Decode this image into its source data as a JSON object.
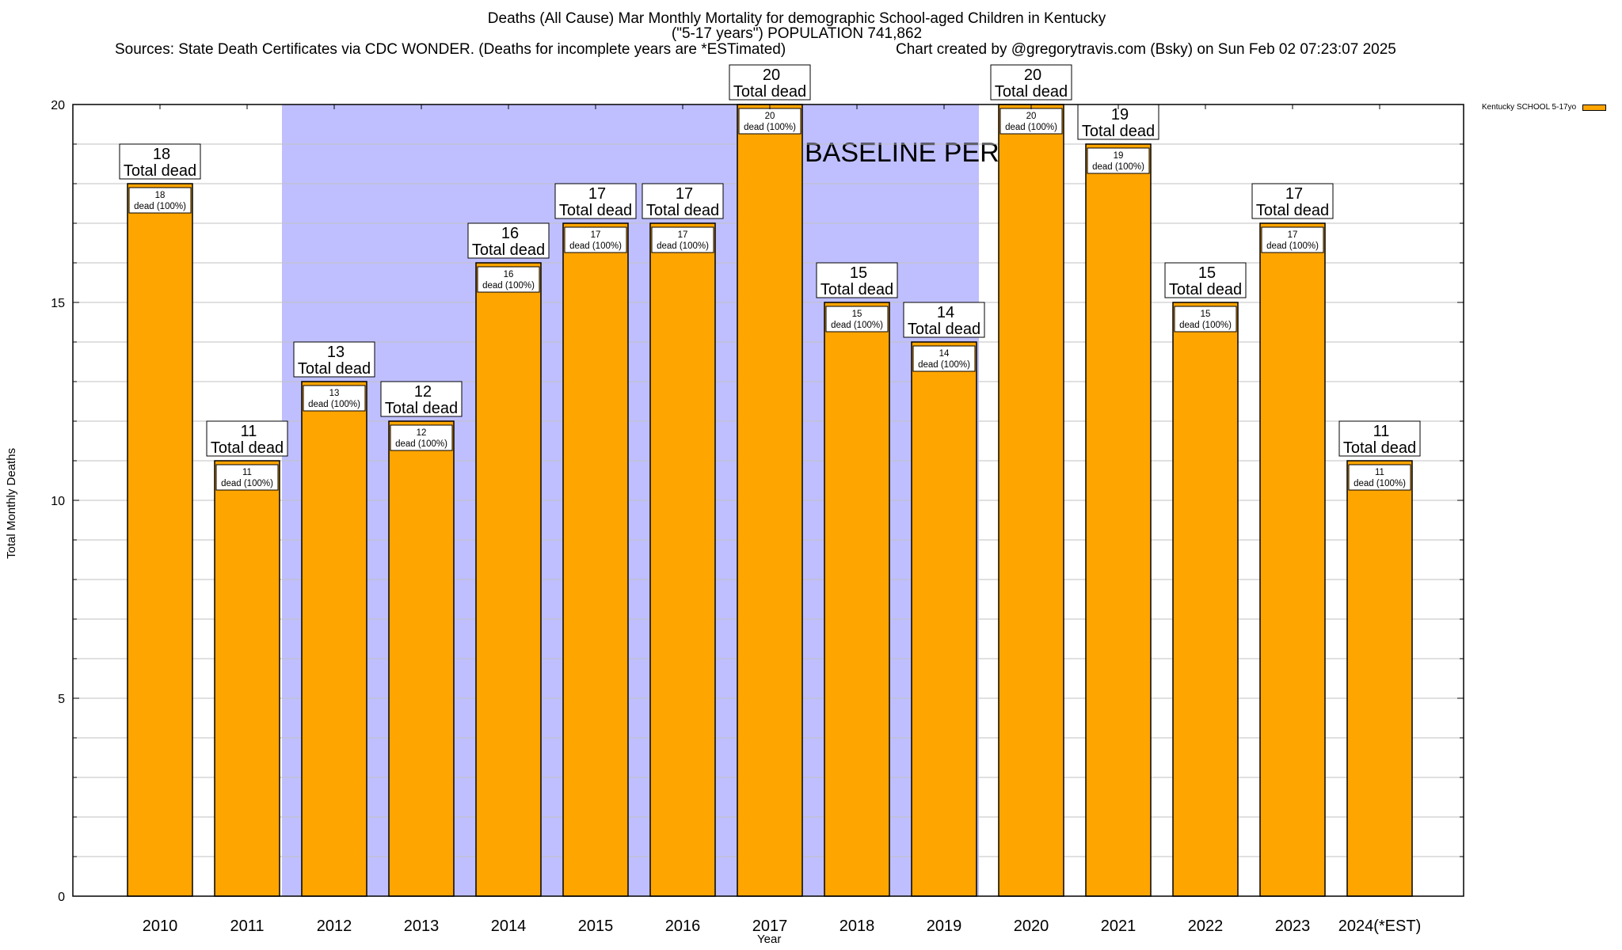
{
  "header": {
    "title_line1": "Deaths (All Cause) Mar Monthly Mortality for demographic School-aged Children in Kentucky",
    "title_line2": "(\"5-17 years\") POPULATION 741,862",
    "sources": "Sources: State Death Certificates via CDC WONDER. (Deaths for incomplete years are *ESTimated)",
    "credit": "Chart created by @gregorytravis.com (Bsky) on Sun Feb 02 07:23:07 2025"
  },
  "colors": {
    "bar": "#ffa500",
    "baseline_shade": "#bfbfff",
    "grid": "#c0c0c0"
  },
  "chart_data": {
    "type": "bar",
    "title": "Deaths (All Cause) Mar Monthly Mortality for demographic School-aged Children in Kentucky",
    "xlabel": "Year",
    "ylabel": "Total Monthly Deaths",
    "ylim": [
      0,
      20
    ],
    "yticks": [
      0,
      5,
      10,
      15,
      20
    ],
    "grid": true,
    "legend_position": "top-right (outside)",
    "categories": [
      "2010",
      "2011",
      "2012",
      "2013",
      "2014",
      "2015",
      "2016",
      "2017",
      "2018",
      "2019",
      "2020",
      "2021",
      "2022",
      "2023",
      "2024(*EST)"
    ],
    "series": [
      {
        "name": "Kentucky SCHOOL 5-17yo",
        "values": [
          18,
          11,
          13,
          12,
          16,
          17,
          17,
          20,
          15,
          14,
          20,
          19,
          15,
          17,
          11
        ]
      }
    ],
    "total_label_suffix": "Total dead",
    "inner_label_suffix": "dead (100%)",
    "annotation": {
      "text": "BASELINE PERIOD",
      "from_category": "2012",
      "to_category": "2019"
    }
  }
}
